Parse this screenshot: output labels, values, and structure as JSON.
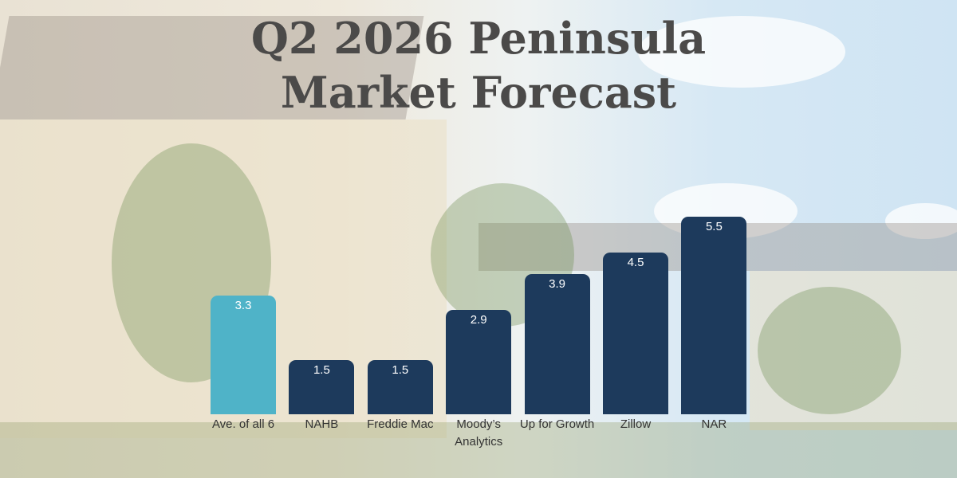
{
  "chart_data": {
    "type": "bar",
    "title": "Q2 2026 Peninsula Market Forecast",
    "categories": [
      "Ave. of all 6",
      "NAHB",
      "Freddie Mac",
      "Moody’s Analytics",
      "Up for Growth",
      "Zillow",
      "NAR"
    ],
    "values": [
      3.3,
      1.5,
      1.5,
      2.9,
      3.9,
      4.5,
      5.5
    ],
    "colors": [
      "#4fb3c8",
      "#1d3a5c",
      "#1d3a5c",
      "#1d3a5c",
      "#1d3a5c",
      "#1d3a5c",
      "#1d3a5c"
    ]
  }
}
